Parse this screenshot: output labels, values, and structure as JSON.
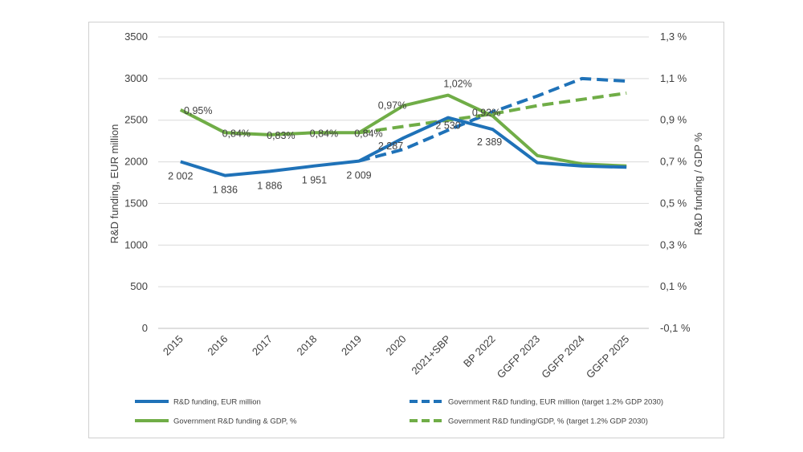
{
  "chart_data": {
    "type": "line",
    "categories": [
      "2015",
      "2016",
      "2017",
      "2018",
      "2019",
      "2020",
      "2021+SBP",
      "BP 2022",
      "GGFP 2023",
      "GGFP 2024",
      "GGFP 2025"
    ],
    "ylabel": "R&D funding, EUR million",
    "y2label": "R&D funding / GDP %",
    "ylim": [
      0,
      3500
    ],
    "y2lim": [
      -0.1,
      1.3
    ],
    "yticks": [
      "0",
      "500",
      "1000",
      "1500",
      "2000",
      "2500",
      "3000",
      "3500"
    ],
    "y2ticks": [
      "-0,1 %",
      "0,1 %",
      "0,3 %",
      "0,5 %",
      "0,7 %",
      "0,9 %",
      "1,1 %",
      "1,3 %"
    ],
    "grid": "horizontal",
    "legend_position": "bottom",
    "series": [
      {
        "name": "R&D funding, EUR million",
        "axis": "left",
        "style": "solid",
        "color": "#1f72b8",
        "values": [
          2002,
          1836,
          1886,
          1951,
          2009,
          2287,
          2530,
          2389,
          1990,
          1950,
          1935
        ],
        "labels": [
          "2 002",
          "1 836",
          "1 886",
          "1 951",
          "2 009",
          "2 287",
          "2 530",
          "2 389",
          null,
          null,
          null
        ]
      },
      {
        "name": "Government R&D funding, EUR million (target 1.2% GDP 2030)",
        "axis": "left",
        "style": "dashed",
        "color": "#1f72b8",
        "values": [
          null,
          null,
          null,
          null,
          2009,
          2150,
          2380,
          2600,
          2790,
          3000,
          2970
        ],
        "labels": []
      },
      {
        "name": "Government R&D funding & GDP, %",
        "axis": "right",
        "style": "solid",
        "color": "#70ad47",
        "values": [
          0.95,
          0.84,
          0.83,
          0.84,
          0.84,
          0.97,
          1.02,
          0.92,
          0.73,
          0.69,
          0.68
        ],
        "labels": [
          "0,95%",
          "0,84%",
          "0,83%",
          "0,84%",
          "0,84%",
          "0,97%",
          "1,02%",
          "0,92%",
          null,
          null,
          null
        ]
      },
      {
        "name": "Government R&D funding/GDP, %  (target 1.2% GDP 2030)",
        "axis": "right",
        "style": "dashed",
        "color": "#70ad47",
        "values": [
          null,
          null,
          null,
          null,
          0.84,
          0.87,
          0.9,
          0.93,
          0.97,
          1.0,
          1.03
        ],
        "labels": []
      }
    ]
  }
}
